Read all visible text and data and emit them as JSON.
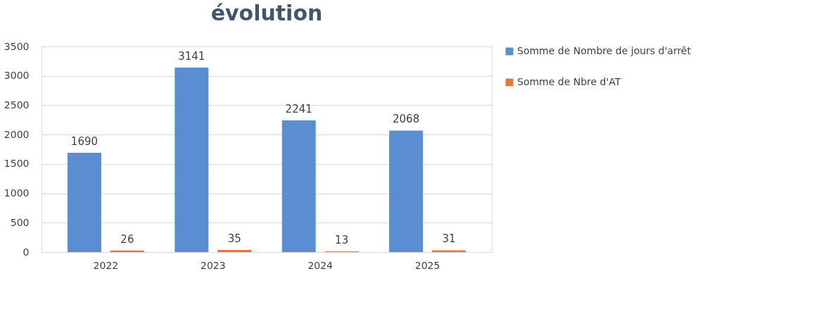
{
  "chart_data": {
    "type": "bar",
    "title": "évolution",
    "categories": [
      "2022",
      "2023",
      "2024",
      "2025"
    ],
    "series": [
      {
        "name": "Somme de Nombre de jours d'arrêt",
        "color": "#5b8ed0",
        "values": [
          1690,
          3141,
          2241,
          2068
        ]
      },
      {
        "name": "Somme de Nbre d'AT",
        "color": "#e8763a",
        "values": [
          26,
          35,
          13,
          31
        ]
      }
    ],
    "ylim": [
      0,
      3500
    ],
    "yticks": [
      0,
      500,
      1000,
      1500,
      2000,
      2500,
      3000,
      3500
    ],
    "data_labels": true,
    "grid": "y",
    "legend": "right"
  }
}
